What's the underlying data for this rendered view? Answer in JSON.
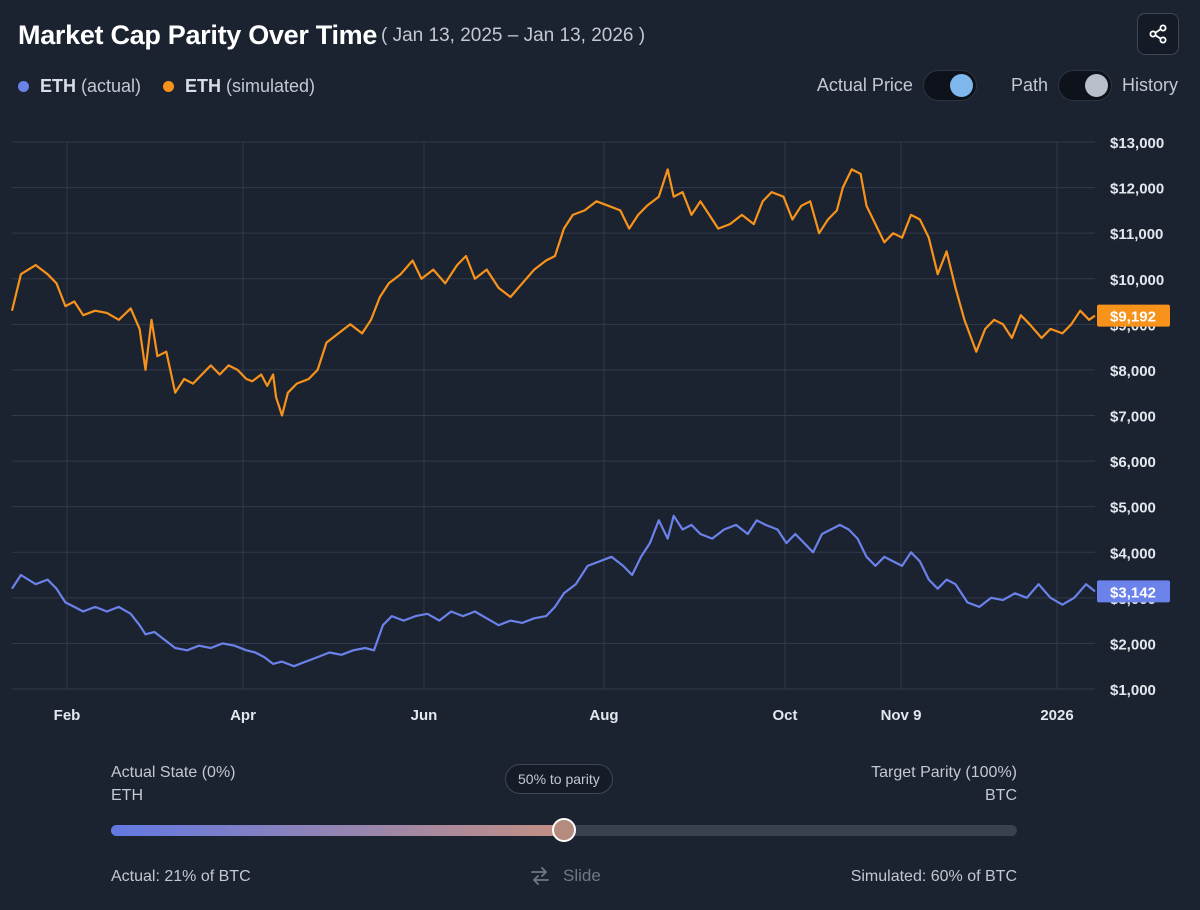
{
  "header": {
    "title": "Market Cap Parity Over Time",
    "date_range": "( Jan 13, 2025 – Jan 13, 2026 )",
    "share_icon": "share-icon"
  },
  "legend": [
    {
      "name": "ETH",
      "suffix": "(actual)",
      "color": "#6b82ea"
    },
    {
      "name": "ETH",
      "suffix": "(simulated)",
      "color": "#f7931a"
    }
  ],
  "toggles": {
    "actual_price": {
      "label": "Actual Price",
      "on": true,
      "knob_color": "#7fb8ec"
    },
    "path_history": {
      "left_label": "Path",
      "right_label": "History",
      "knob_color": "#b9c0cb"
    }
  },
  "chart_data": {
    "type": "line",
    "title": "Market Cap Parity Over Time",
    "x_tick_labels": [
      "Feb",
      "Apr",
      "Jun",
      "Aug",
      "Oct",
      "Nov 9",
      "2026"
    ],
    "y_tick_values": [
      1000,
      2000,
      3000,
      4000,
      5000,
      6000,
      7000,
      8000,
      9000,
      10000,
      11000,
      12000,
      13000
    ],
    "y_tick_labels": [
      "$1,000",
      "$2,000",
      "$3,000",
      "$4,000",
      "$5,000",
      "$6,000",
      "$7,000",
      "$8,000",
      "$9,000",
      "$10,000",
      "$11,000",
      "$12,000",
      "$13,000"
    ],
    "ylim": [
      1000,
      13000
    ],
    "xlim_days": [
      0,
      365
    ],
    "grid": true,
    "series": [
      {
        "name": "ETH (simulated)",
        "color": "#f7931a",
        "last_label": "$9,192",
        "last_value": 9192,
        "points": [
          [
            0,
            9300
          ],
          [
            3,
            10100
          ],
          [
            8,
            10300
          ],
          [
            12,
            10100
          ],
          [
            15,
            9900
          ],
          [
            18,
            9400
          ],
          [
            21,
            9500
          ],
          [
            24,
            9200
          ],
          [
            28,
            9300
          ],
          [
            32,
            9250
          ],
          [
            36,
            9100
          ],
          [
            40,
            9350
          ],
          [
            43,
            8900
          ],
          [
            45,
            8000
          ],
          [
            47,
            9100
          ],
          [
            49,
            8300
          ],
          [
            52,
            8400
          ],
          [
            55,
            7500
          ],
          [
            58,
            7800
          ],
          [
            61,
            7700
          ],
          [
            64,
            7900
          ],
          [
            67,
            8100
          ],
          [
            70,
            7900
          ],
          [
            73,
            8100
          ],
          [
            76,
            8000
          ],
          [
            79,
            7800
          ],
          [
            81,
            7750
          ],
          [
            84,
            7900
          ],
          [
            86,
            7650
          ],
          [
            88,
            7900
          ],
          [
            89,
            7400
          ],
          [
            91,
            7000
          ],
          [
            93,
            7500
          ],
          [
            96,
            7700
          ],
          [
            100,
            7800
          ],
          [
            103,
            8000
          ],
          [
            106,
            8600
          ],
          [
            110,
            8800
          ],
          [
            114,
            9000
          ],
          [
            118,
            8800
          ],
          [
            121,
            9100
          ],
          [
            124,
            9600
          ],
          [
            127,
            9900
          ],
          [
            131,
            10100
          ],
          [
            135,
            10400
          ],
          [
            138,
            10000
          ],
          [
            142,
            10200
          ],
          [
            146,
            9900
          ],
          [
            150,
            10300
          ],
          [
            153,
            10500
          ],
          [
            156,
            10000
          ],
          [
            160,
            10200
          ],
          [
            164,
            9800
          ],
          [
            168,
            9600
          ],
          [
            172,
            9900
          ],
          [
            176,
            10200
          ],
          [
            180,
            10400
          ],
          [
            183,
            10500
          ],
          [
            186,
            11100
          ],
          [
            189,
            11400
          ],
          [
            193,
            11500
          ],
          [
            197,
            11700
          ],
          [
            201,
            11600
          ],
          [
            205,
            11500
          ],
          [
            208,
            11100
          ],
          [
            211,
            11400
          ],
          [
            214,
            11600
          ],
          [
            218,
            11800
          ],
          [
            221,
            12400
          ],
          [
            223,
            11800
          ],
          [
            226,
            11900
          ],
          [
            229,
            11400
          ],
          [
            232,
            11700
          ],
          [
            235,
            11400
          ],
          [
            238,
            11100
          ],
          [
            242,
            11200
          ],
          [
            246,
            11400
          ],
          [
            250,
            11200
          ],
          [
            253,
            11700
          ],
          [
            256,
            11900
          ],
          [
            260,
            11800
          ],
          [
            263,
            11300
          ],
          [
            266,
            11600
          ],
          [
            269,
            11700
          ],
          [
            272,
            11000
          ],
          [
            275,
            11300
          ],
          [
            278,
            11500
          ],
          [
            280,
            12000
          ],
          [
            283,
            12400
          ],
          [
            286,
            12300
          ],
          [
            288,
            11600
          ],
          [
            291,
            11200
          ],
          [
            294,
            10800
          ],
          [
            297,
            11000
          ],
          [
            300,
            10900
          ],
          [
            303,
            11400
          ],
          [
            306,
            11300
          ],
          [
            309,
            10900
          ],
          [
            312,
            10100
          ],
          [
            315,
            10600
          ],
          [
            318,
            9800
          ],
          [
            321,
            9100
          ],
          [
            325,
            8400
          ],
          [
            328,
            8900
          ],
          [
            331,
            9100
          ],
          [
            334,
            9000
          ],
          [
            337,
            8700
          ],
          [
            340,
            9200
          ],
          [
            343,
            9000
          ],
          [
            347,
            8700
          ],
          [
            350,
            8900
          ],
          [
            354,
            8800
          ],
          [
            357,
            9000
          ],
          [
            360,
            9300
          ],
          [
            363,
            9100
          ],
          [
            365,
            9192
          ]
        ]
      },
      {
        "name": "ETH (actual)",
        "color": "#6b82ea",
        "last_label": "$3,142",
        "last_value": 3142,
        "points": [
          [
            0,
            3200
          ],
          [
            3,
            3500
          ],
          [
            8,
            3300
          ],
          [
            12,
            3400
          ],
          [
            15,
            3200
          ],
          [
            18,
            2900
          ],
          [
            21,
            2800
          ],
          [
            24,
            2700
          ],
          [
            28,
            2800
          ],
          [
            32,
            2700
          ],
          [
            36,
            2800
          ],
          [
            40,
            2650
          ],
          [
            43,
            2400
          ],
          [
            45,
            2200
          ],
          [
            48,
            2250
          ],
          [
            52,
            2050
          ],
          [
            55,
            1900
          ],
          [
            59,
            1850
          ],
          [
            63,
            1950
          ],
          [
            67,
            1900
          ],
          [
            71,
            2000
          ],
          [
            75,
            1950
          ],
          [
            79,
            1850
          ],
          [
            82,
            1800
          ],
          [
            85,
            1700
          ],
          [
            88,
            1550
          ],
          [
            91,
            1600
          ],
          [
            95,
            1500
          ],
          [
            99,
            1600
          ],
          [
            103,
            1700
          ],
          [
            107,
            1800
          ],
          [
            111,
            1750
          ],
          [
            115,
            1850
          ],
          [
            119,
            1900
          ],
          [
            122,
            1850
          ],
          [
            125,
            2400
          ],
          [
            128,
            2600
          ],
          [
            132,
            2500
          ],
          [
            136,
            2600
          ],
          [
            140,
            2650
          ],
          [
            144,
            2500
          ],
          [
            148,
            2700
          ],
          [
            152,
            2600
          ],
          [
            156,
            2700
          ],
          [
            160,
            2550
          ],
          [
            164,
            2400
          ],
          [
            168,
            2500
          ],
          [
            172,
            2450
          ],
          [
            176,
            2550
          ],
          [
            180,
            2600
          ],
          [
            183,
            2800
          ],
          [
            186,
            3100
          ],
          [
            190,
            3300
          ],
          [
            194,
            3700
          ],
          [
            198,
            3800
          ],
          [
            202,
            3900
          ],
          [
            206,
            3700
          ],
          [
            209,
            3500
          ],
          [
            212,
            3900
          ],
          [
            215,
            4200
          ],
          [
            218,
            4700
          ],
          [
            221,
            4300
          ],
          [
            223,
            4800
          ],
          [
            226,
            4500
          ],
          [
            229,
            4600
          ],
          [
            232,
            4400
          ],
          [
            236,
            4300
          ],
          [
            240,
            4500
          ],
          [
            244,
            4600
          ],
          [
            248,
            4400
          ],
          [
            251,
            4700
          ],
          [
            254,
            4600
          ],
          [
            258,
            4500
          ],
          [
            261,
            4200
          ],
          [
            264,
            4400
          ],
          [
            267,
            4200
          ],
          [
            270,
            4000
          ],
          [
            273,
            4400
          ],
          [
            276,
            4500
          ],
          [
            279,
            4600
          ],
          [
            282,
            4500
          ],
          [
            285,
            4300
          ],
          [
            288,
            3900
          ],
          [
            291,
            3700
          ],
          [
            294,
            3900
          ],
          [
            297,
            3800
          ],
          [
            300,
            3700
          ],
          [
            303,
            4000
          ],
          [
            306,
            3800
          ],
          [
            309,
            3400
          ],
          [
            312,
            3200
          ],
          [
            315,
            3400
          ],
          [
            318,
            3300
          ],
          [
            322,
            2900
          ],
          [
            326,
            2800
          ],
          [
            330,
            3000
          ],
          [
            334,
            2950
          ],
          [
            338,
            3100
          ],
          [
            342,
            3000
          ],
          [
            346,
            3300
          ],
          [
            350,
            3000
          ],
          [
            354,
            2850
          ],
          [
            358,
            3000
          ],
          [
            362,
            3300
          ],
          [
            365,
            3142
          ]
        ]
      }
    ]
  },
  "slider": {
    "left_title": "Actual State (0%)",
    "left_sub": "ETH",
    "right_title": "Target Parity (100%)",
    "right_sub": "BTC",
    "badge": "50% to parity",
    "value_percent": 50,
    "track_fill_start": "#6279e3",
    "track_fill_end": "#c48f82",
    "footer_left": "Actual: 21% of BTC",
    "footer_mid_icon": "swap-arrows-icon",
    "footer_mid": "Slide",
    "footer_right": "Simulated: 60% of BTC"
  }
}
